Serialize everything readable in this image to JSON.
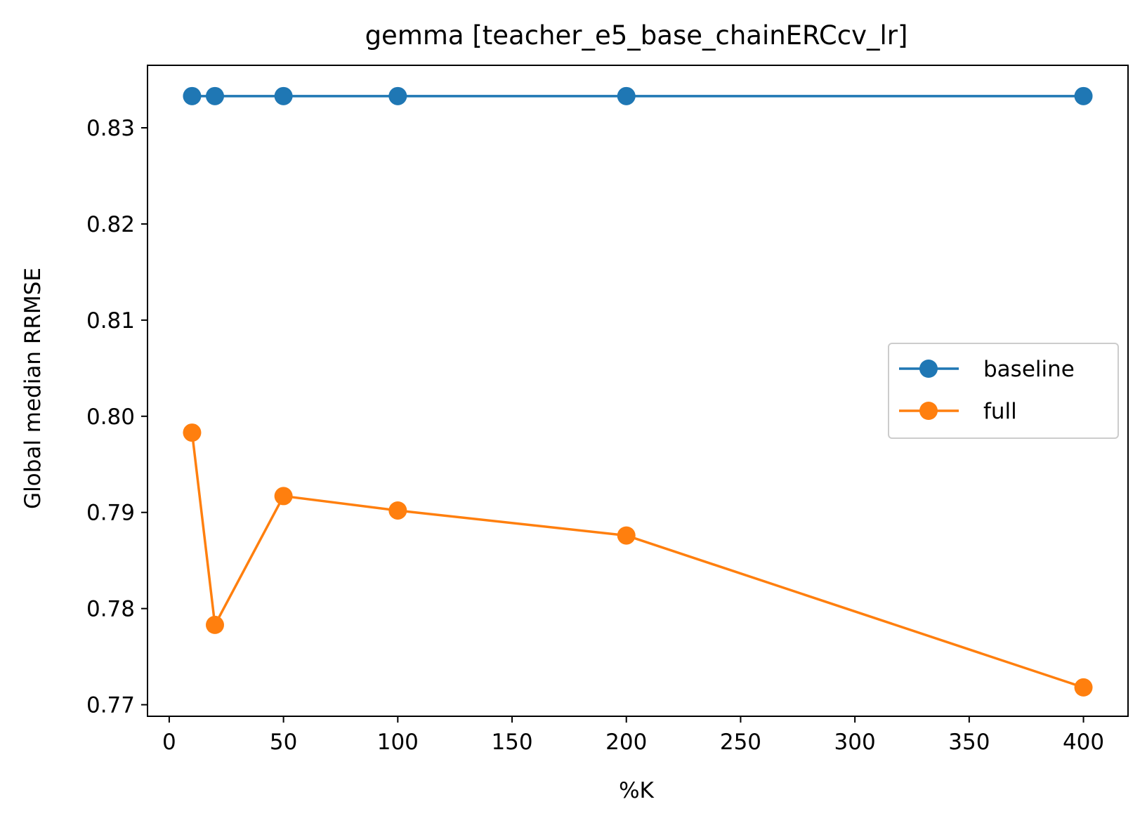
{
  "chart_data": {
    "type": "line",
    "title": "gemma [teacher_e5_base_chainERCcv_lr]",
    "xlabel": "%K",
    "ylabel": "Global median RRMSE",
    "x": [
      10,
      20,
      50,
      100,
      200,
      400
    ],
    "series": [
      {
        "name": "baseline",
        "color": "#1f77b4",
        "marker": "circle",
        "values": [
          0.8333,
          0.8333,
          0.8333,
          0.8333,
          0.8333,
          0.8333
        ]
      },
      {
        "name": "full",
        "color": "#ff7f0e",
        "marker": "circle",
        "values": [
          0.7983,
          0.7783,
          0.7917,
          0.7902,
          0.7876,
          0.7718
        ]
      }
    ],
    "xlim": [
      -9.5,
      419.5
    ],
    "ylim": [
      0.7688,
      0.8365
    ],
    "xticks": [
      0,
      50,
      100,
      150,
      200,
      250,
      300,
      350,
      400
    ],
    "xtick_labels": [
      "0",
      "50",
      "100",
      "150",
      "200",
      "250",
      "300",
      "350",
      "400"
    ],
    "yticks": [
      0.77,
      0.78,
      0.79,
      0.8,
      0.81,
      0.82,
      0.83
    ],
    "ytick_labels": [
      "0.77",
      "0.78",
      "0.79",
      "0.80",
      "0.81",
      "0.82",
      "0.83"
    ],
    "grid": false,
    "legend_position": "center-right"
  }
}
